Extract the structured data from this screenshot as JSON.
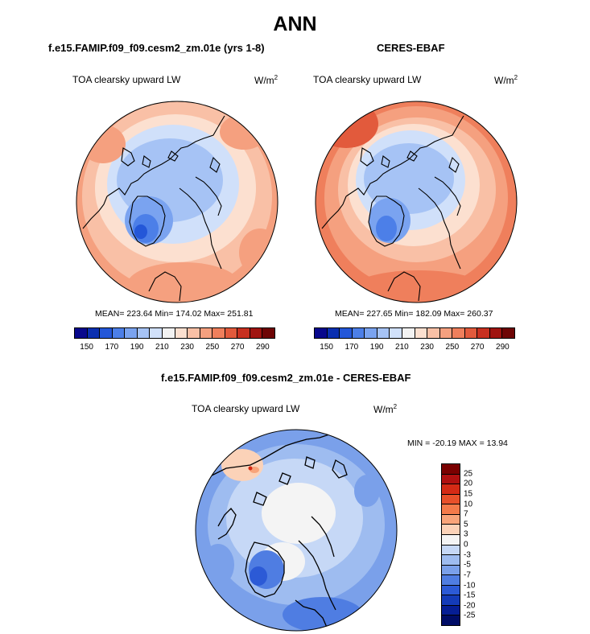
{
  "figure": {
    "title": "ANN"
  },
  "panels": [
    {
      "case_title": "f.e15.FAMIP.f09_f09.cesm2_zm.01e (yrs 1-8)",
      "variable": "TOA clearsky upward LW",
      "units_base": "W/m",
      "units_exp": "2",
      "stats": "MEAN= 223.64  Min= 174.02  Max= 251.81",
      "colorbar_ticks": [
        "150",
        "170",
        "190",
        "210",
        "230",
        "250",
        "270",
        "290"
      ]
    },
    {
      "case_title": "CERES-EBAF",
      "variable": "TOA clearsky upward LW",
      "units_base": "W/m",
      "units_exp": "2",
      "stats": "MEAN= 227.65  Min= 182.09  Max= 260.37",
      "colorbar_ticks": [
        "150",
        "170",
        "190",
        "210",
        "230",
        "250",
        "270",
        "290"
      ]
    },
    {
      "case_title": "f.e15.FAMIP.f09_f09.cesm2_zm.01e - CERES-EBAF",
      "variable": "TOA clearsky upward LW",
      "units_base": "W/m",
      "units_exp": "2",
      "stats": "MIN = -20.19 MAX =  13.94",
      "colorbar_ticks": [
        "25",
        "20",
        "15",
        "10",
        "7",
        "5",
        "3",
        "0",
        "-3",
        "-5",
        "-7",
        "-10",
        "-15",
        "-20",
        "-25"
      ]
    }
  ],
  "colors": {
    "abs_levels": [
      "#08088c",
      "#0a2fb0",
      "#2457d8",
      "#4c7fe8",
      "#7aa3f0",
      "#a6c3f5",
      "#d0e0fa",
      "#f2f2f2",
      "#fce0d0",
      "#f9c0a6",
      "#f5a07f",
      "#ef7f5c",
      "#e25a3c",
      "#c73020",
      "#a01410",
      "#6e0505"
    ],
    "diff_levels": [
      "#7a0000",
      "#b01010",
      "#d42a15",
      "#e8502a",
      "#f47a4a",
      "#f8a47a",
      "#fbd2b8",
      "#f4f4f4",
      "#c6d8f6",
      "#9ebcf0",
      "#7aa0ea",
      "#4f7de2",
      "#2c5ad6",
      "#143bb8",
      "#061e94",
      "#000c66"
    ],
    "coast": "#000000",
    "sea": "#c9def8"
  }
}
